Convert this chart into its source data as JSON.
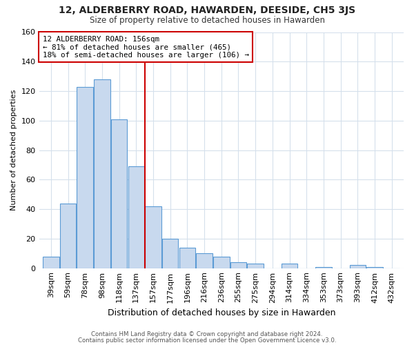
{
  "title": "12, ALDERBERRY ROAD, HAWARDEN, DEESIDE, CH5 3JS",
  "subtitle": "Size of property relative to detached houses in Hawarden",
  "xlabel": "Distribution of detached houses by size in Hawarden",
  "ylabel": "Number of detached properties",
  "bar_labels": [
    "39sqm",
    "59sqm",
    "78sqm",
    "98sqm",
    "118sqm",
    "137sqm",
    "157sqm",
    "177sqm",
    "196sqm",
    "216sqm",
    "236sqm",
    "255sqm",
    "275sqm",
    "294sqm",
    "314sqm",
    "334sqm",
    "353sqm",
    "373sqm",
    "393sqm",
    "412sqm",
    "432sqm"
  ],
  "bar_heights": [
    8,
    44,
    123,
    128,
    101,
    69,
    42,
    20,
    14,
    10,
    8,
    4,
    3,
    0,
    3,
    0,
    1,
    0,
    2,
    1,
    0
  ],
  "bar_color": "#c8d9ee",
  "bar_edge_color": "#5b9bd5",
  "property_line_label": "12 ALDERBERRY ROAD: 156sqm",
  "annotation_line1": "← 81% of detached houses are smaller (465)",
  "annotation_line2": "18% of semi-detached houses are larger (106) →",
  "annotation_box_color": "#ffffff",
  "annotation_box_edge_color": "#cc0000",
  "property_line_color": "#cc0000",
  "property_line_index": 6,
  "ylim": [
    0,
    160
  ],
  "yticks": [
    0,
    20,
    40,
    60,
    80,
    100,
    120,
    140,
    160
  ],
  "bg_color": "#ffffff",
  "grid_color": "#d5e0ec",
  "footer1": "Contains HM Land Registry data © Crown copyright and database right 2024.",
  "footer2": "Contains public sector information licensed under the Open Government Licence v3.0."
}
